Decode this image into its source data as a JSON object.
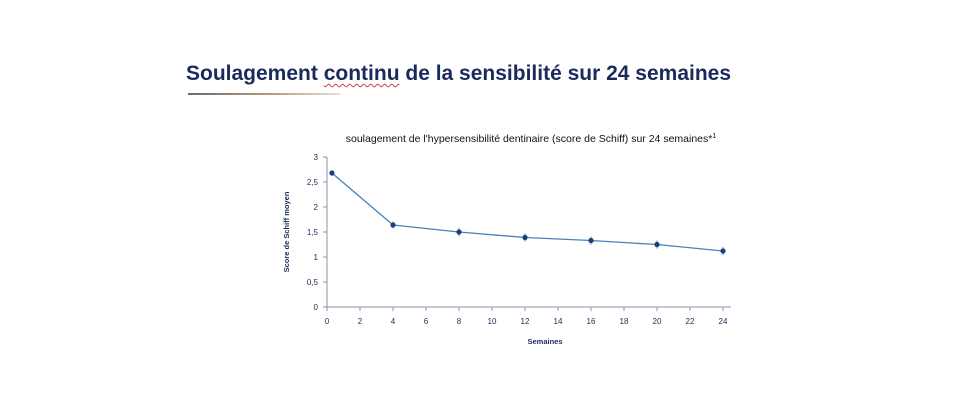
{
  "slide": {
    "title_part1": "Soulagement ",
    "title_misspelled": "continu",
    "title_part2": " de la sensibilité sur 24 semaines"
  },
  "chart_data": {
    "type": "line",
    "title": "soulagement de l'hypersensibilité dentinaire (score de Schiff) sur 24 semaines*",
    "title_superscript": "1",
    "xlabel": "Semaines",
    "ylabel": "Score de Schiff moyen",
    "xlim": [
      0,
      24
    ],
    "ylim": [
      0,
      3
    ],
    "xticks": [
      "0",
      "2",
      "4",
      "6",
      "8",
      "10",
      "12",
      "14",
      "16",
      "18",
      "20",
      "22",
      "24"
    ],
    "yticks": [
      "0",
      "0,5",
      "1",
      "1,5",
      "2",
      "2,5",
      "3"
    ],
    "x": [
      0.3,
      4,
      8,
      12,
      16,
      20,
      24
    ],
    "y": [
      2.68,
      1.64,
      1.5,
      1.39,
      1.33,
      1.25,
      1.12
    ],
    "error": [
      0.03,
      0.05,
      0.06,
      0.06,
      0.06,
      0.06,
      0.06
    ],
    "grid": false,
    "colors": {
      "line": "#4a82b8",
      "marker": "#1c3f7a",
      "text": "#1b2a5c"
    }
  }
}
